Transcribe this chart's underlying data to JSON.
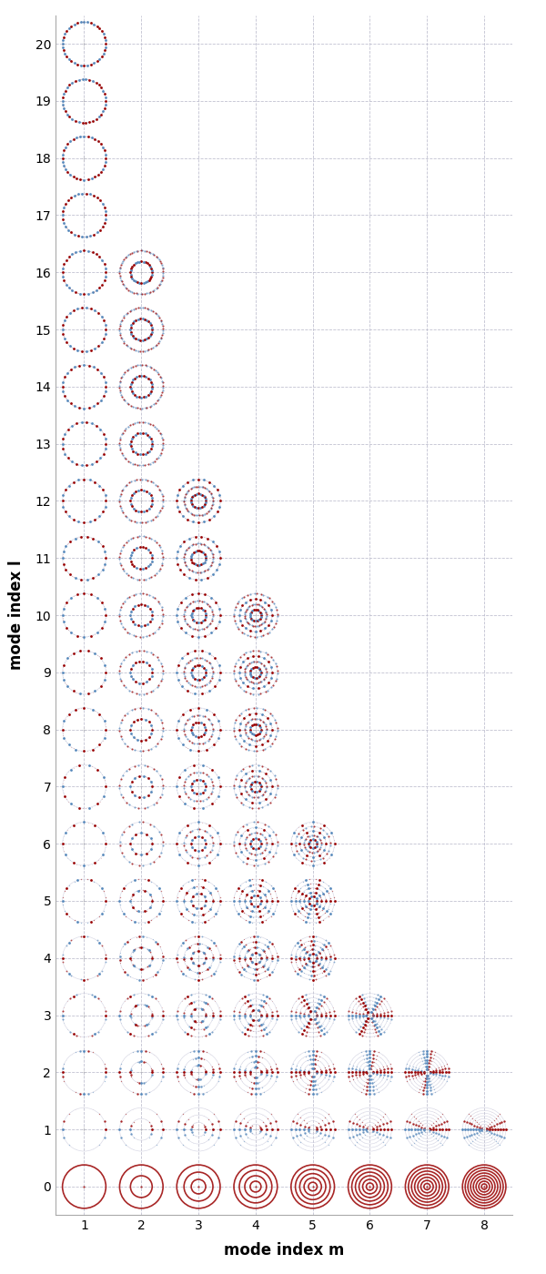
{
  "m_min": 1,
  "m_max": 8,
  "l_min": 0,
  "l_max": 20,
  "xlabel": "mode index m",
  "ylabel": "mode index l",
  "bg_color": "#ffffff",
  "grid_color": "#bbbbcc",
  "red_color": "#990000",
  "blue_color": "#5588bb",
  "mode_exists_max_m": [
    8,
    8,
    7,
    6,
    5,
    5,
    5,
    4,
    4,
    4,
    4,
    3,
    3,
    2,
    2,
    2,
    2,
    1,
    1,
    1,
    1
  ],
  "figsize": [
    6.0,
    14.0
  ],
  "dpi": 100
}
